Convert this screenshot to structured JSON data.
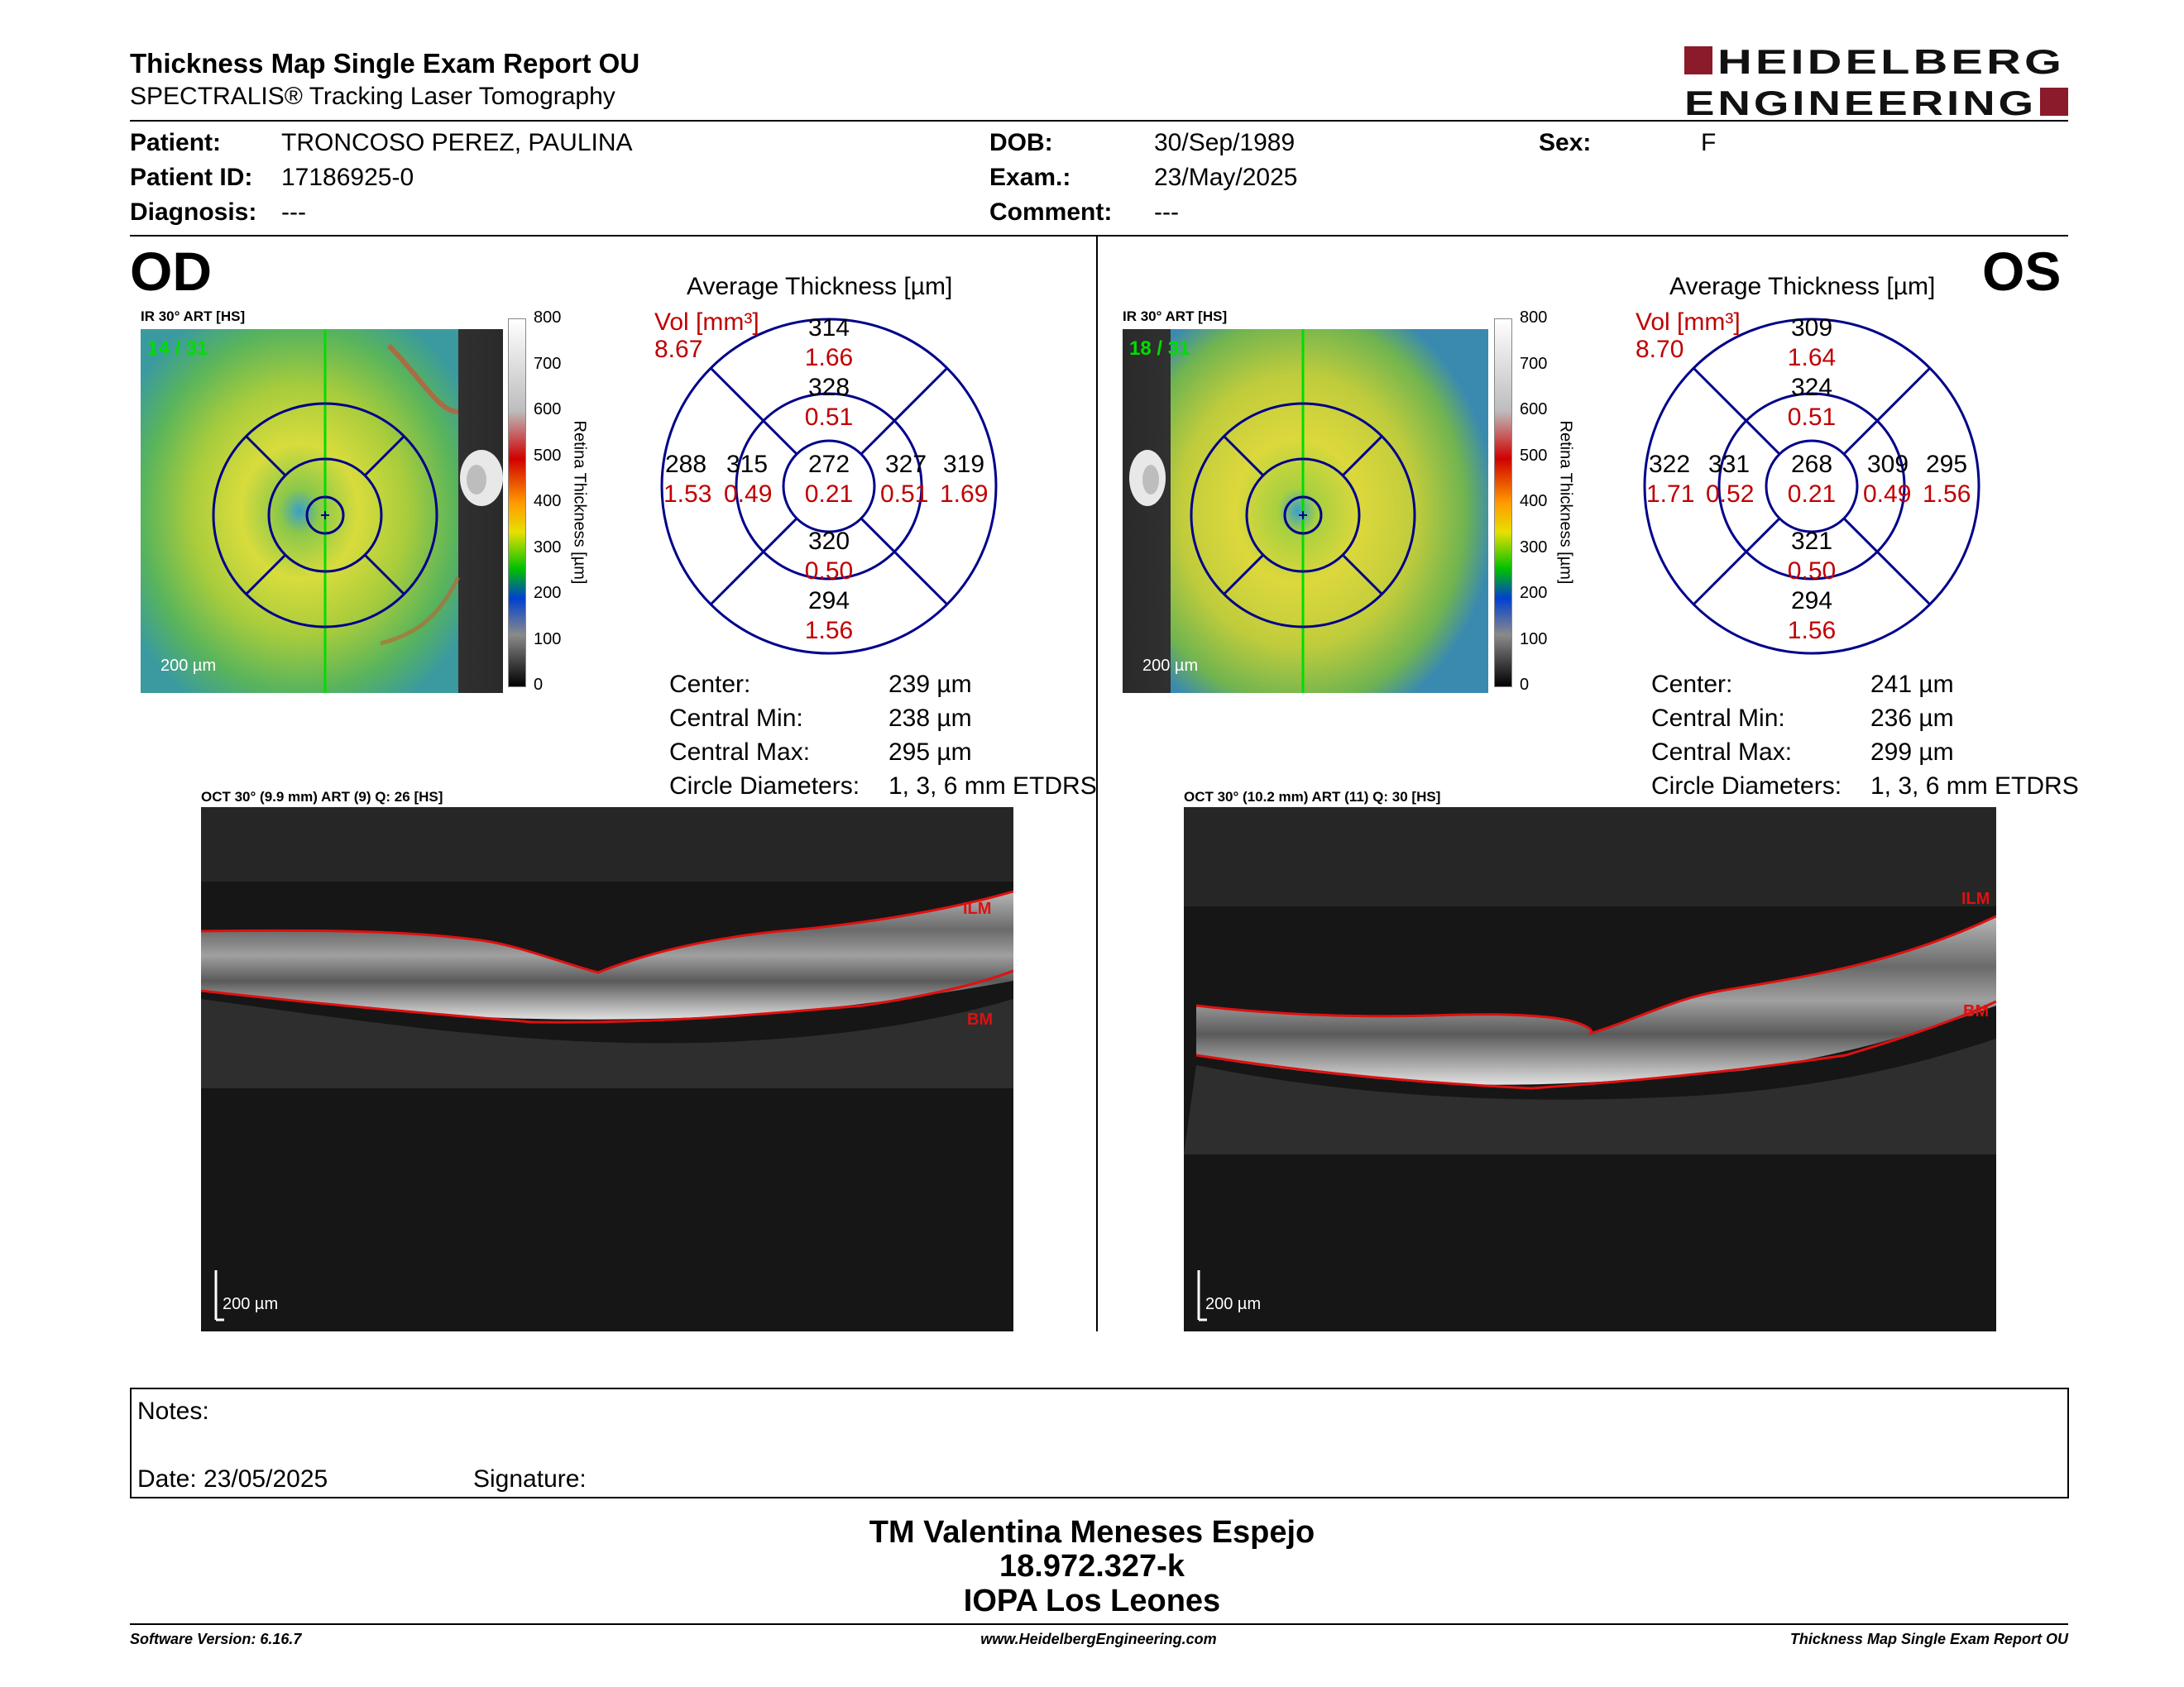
{
  "header": {
    "title": "Thickness Map Single Exam Report OU",
    "subtitle": "SPECTRALIS® Tracking Laser Tomography",
    "logo": "HEIDELBERG ENGINEERING",
    "logo_line1": "HEIDELBERG",
    "logo_line2": "ENGINEERING"
  },
  "patient": {
    "patient_label": "Patient:",
    "patient_value": "TRONCOSO PEREZ, PAULINA",
    "id_label": "Patient ID:",
    "id_value": "17186925-0",
    "diag_label": "Diagnosis:",
    "diag_value": "---",
    "dob_label": "DOB:",
    "dob_value": "30/Sep/1989",
    "exam_label": "Exam.:",
    "exam_value": "23/May/2025",
    "comment_label": "Comment:",
    "comment_value": "---",
    "sex_label": "Sex:",
    "sex_value": "F"
  },
  "colorbar": {
    "ticks": [
      "800",
      "700",
      "600",
      "500",
      "400",
      "300",
      "200",
      "100",
      "0"
    ],
    "label": "Retina Thickness [µm]"
  },
  "od": {
    "eye": "OD",
    "ir_title": "IR 30° ART [HS]",
    "frame": "14 / 31",
    "scale": "200 µm",
    "avg_title": "Average Thickness [µm]",
    "vol_label": "Vol [mm³]",
    "vol_value": "8.67",
    "grid": {
      "outer_sup_t": "314",
      "outer_sup_v": "1.66",
      "inner_sup_t": "328",
      "inner_sup_v": "0.51",
      "center_t": "272",
      "center_v": "0.21",
      "inner_inf_t": "320",
      "inner_inf_v": "0.50",
      "outer_inf_t": "294",
      "outer_inf_v": "1.56",
      "outer_left_t": "288",
      "outer_left_v": "1.53",
      "inner_left_t": "315",
      "inner_left_v": "0.49",
      "inner_right_t": "327",
      "inner_right_v": "0.51",
      "outer_right_t": "319",
      "outer_right_v": "1.69"
    },
    "stats": {
      "center_label": "Center:",
      "center_value": "239 µm",
      "min_label": "Central Min:",
      "min_value": "238 µm",
      "max_label": "Central Max:",
      "max_value": "295 µm",
      "diam_label": "Circle Diameters:",
      "diam_value": "1, 3, 6 mm ETDRS"
    },
    "oct_title": "OCT 30° (9.9 mm) ART (9) Q: 26 [HS]",
    "ilm": "ILM",
    "bm": "BM",
    "oct_scale": "200 µm"
  },
  "os": {
    "eye": "OS",
    "ir_title": "IR 30° ART [HS]",
    "frame": "18 / 31",
    "scale": "200 µm",
    "avg_title": "Average Thickness [µm]",
    "vol_label": "Vol [mm³]",
    "vol_value": "8.70",
    "grid": {
      "outer_sup_t": "309",
      "outer_sup_v": "1.64",
      "inner_sup_t": "324",
      "inner_sup_v": "0.51",
      "center_t": "268",
      "center_v": "0.21",
      "inner_inf_t": "321",
      "inner_inf_v": "0.50",
      "outer_inf_t": "294",
      "outer_inf_v": "1.56",
      "outer_left_t": "322",
      "outer_left_v": "1.71",
      "inner_left_t": "331",
      "inner_left_v": "0.52",
      "inner_right_t": "309",
      "inner_right_v": "0.49",
      "outer_right_t": "295",
      "outer_right_v": "1.56"
    },
    "stats": {
      "center_label": "Center:",
      "center_value": "241 µm",
      "min_label": "Central Min:",
      "min_value": "236 µm",
      "max_label": "Central Max:",
      "max_value": "299 µm",
      "diam_label": "Circle Diameters:",
      "diam_value": "1, 3, 6 mm ETDRS"
    },
    "oct_title": "OCT 30° (10.2 mm) ART (11) Q: 30 [HS]",
    "ilm": "ILM",
    "bm": "BM",
    "oct_scale": "200 µm"
  },
  "notes": {
    "notes_label": "Notes:",
    "date_label": "Date: 23/05/2025",
    "signature_label": "Signature:"
  },
  "signer": {
    "name": "TM Valentina Meneses Espejo",
    "rut": "18.972.327-k",
    "org": "IOPA Los Leones"
  },
  "footer": {
    "version": "Software Version: 6.16.7",
    "url": "www.HeidelbergEngineering.com",
    "report": "Thickness Map Single Exam Report OU"
  },
  "colors": {
    "grid_line": "#00008b",
    "volume_text": "#c00000",
    "layer_line": "#e01010",
    "logo_red": "#8b1a2b",
    "scan_axis": "#00dd00"
  }
}
